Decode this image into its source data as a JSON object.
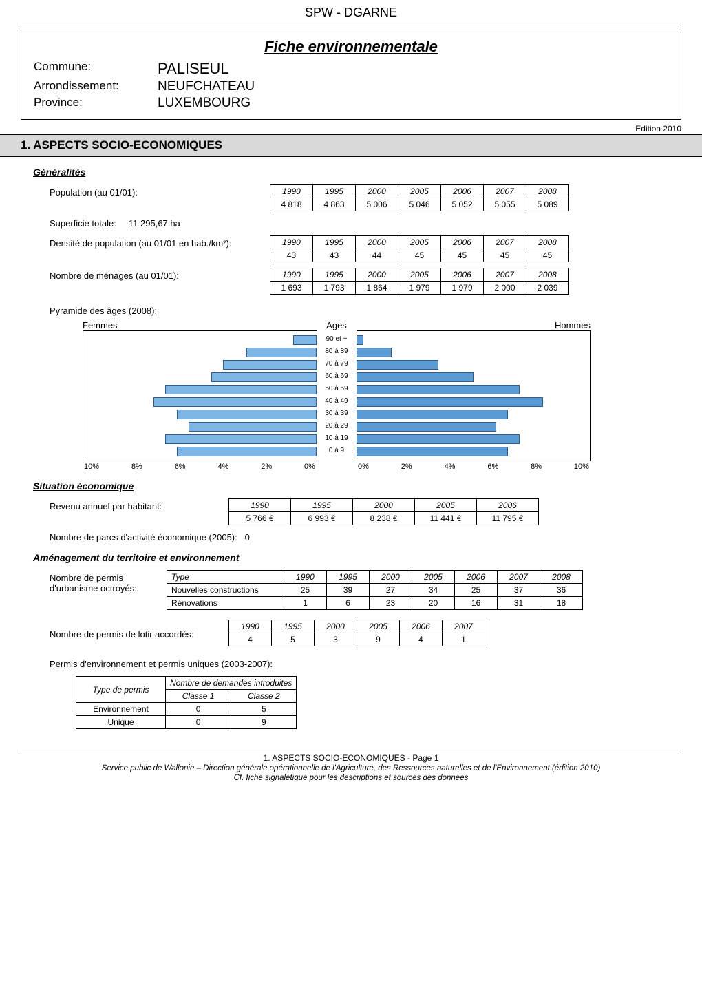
{
  "header": {
    "top_title": "SPW - DGARNE",
    "fiche_title": "Fiche environnementale",
    "commune_label": "Commune:",
    "commune_value": "PALISEUL",
    "arrondissement_label": "Arrondissement:",
    "arrondissement_value": "NEUFCHATEAU",
    "province_label": "Province:",
    "province_value": "LUXEMBOURG",
    "edition": "Edition  2010"
  },
  "section1": {
    "title": "1. ASPECTS SOCIO-ECONOMIQUES"
  },
  "generalites": {
    "heading": "Généralités",
    "population_label": "Population (au 01/01):",
    "population_years": [
      "1990",
      "1995",
      "2000",
      "2005",
      "2006",
      "2007",
      "2008"
    ],
    "population_values": [
      "4 818",
      "4 863",
      "5 006",
      "5 046",
      "5 052",
      "5 055",
      "5 089"
    ],
    "superficie_label": "Superficie totale:",
    "superficie_value": "11 295,67 ha",
    "densite_label": "Densité de population (au 01/01 en hab./km²):",
    "densite_years": [
      "1990",
      "1995",
      "2000",
      "2005",
      "2006",
      "2007",
      "2008"
    ],
    "densite_values": [
      "43",
      "43",
      "44",
      "45",
      "45",
      "45",
      "45"
    ],
    "menages_label": "Nombre de ménages (au 01/01):",
    "menages_years": [
      "1990",
      "1995",
      "2000",
      "2005",
      "2006",
      "2007",
      "2008"
    ],
    "menages_values": [
      "1 693",
      "1 793",
      "1 864",
      "1 979",
      "1 979",
      "2 000",
      "2 039"
    ],
    "pyramide_label": "Pyramide des âges (2008):",
    "pyramide": {
      "left_title": "Femmes",
      "center_title": "Ages",
      "right_title": "Hommes",
      "age_labels": [
        "90 et +",
        "80 à 89",
        "70 à 79",
        "60 à 69",
        "50 à 59",
        "40 à 49",
        "30 à 39",
        "20 à 29",
        "10 à 19",
        "0 à 9"
      ],
      "femmes_pct": [
        1.0,
        3.0,
        4.0,
        4.5,
        6.5,
        7.0,
        6.0,
        5.5,
        6.5,
        6.0
      ],
      "hommes_pct": [
        0.3,
        1.5,
        3.5,
        5.0,
        7.0,
        8.0,
        6.5,
        6.0,
        7.0,
        6.5
      ],
      "axis_left": [
        "10%",
        "8%",
        "6%",
        "4%",
        "2%",
        "0%"
      ],
      "axis_right": [
        "0%",
        "2%",
        "4%",
        "6%",
        "8%",
        "10%"
      ],
      "max_pct": 10,
      "bar_fill_left": "#7eb6e6",
      "bar_fill_right": "#5a9bd4",
      "bar_border": "#2f5b93"
    }
  },
  "situation": {
    "heading": "Situation économique",
    "revenu_label": "Revenu annuel par habitant:",
    "revenu_years": [
      "1990",
      "1995",
      "2000",
      "2005",
      "2006"
    ],
    "revenu_values": [
      "5 766 €",
      "6 993 €",
      "8 238 €",
      "11 441 €",
      "11 795 €"
    ],
    "parcs_label": "Nombre de parcs d'activité économique (2005):",
    "parcs_value": "0"
  },
  "amenagement": {
    "heading": "Aménagement du territoire et environnement",
    "permis_intro1": "Nombre de permis",
    "permis_intro2": "d'urbanisme octroyés:",
    "permis_types_header": [
      "Type",
      "1990",
      "1995",
      "2000",
      "2005",
      "2006",
      "2007",
      "2008"
    ],
    "permis_types_rows": [
      [
        "Nouvelles constructions",
        "25",
        "39",
        "27",
        "34",
        "25",
        "37",
        "36"
      ],
      [
        "Rénovations",
        "1",
        "6",
        "23",
        "20",
        "16",
        "31",
        "18"
      ]
    ],
    "lotir_label": "Nombre de permis de lotir accordés:",
    "lotir_years": [
      "1990",
      "1995",
      "2000",
      "2005",
      "2006",
      "2007"
    ],
    "lotir_values": [
      "4",
      "5",
      "3",
      "9",
      "4",
      "1"
    ],
    "env_permis_label": "Permis d'environnement et permis uniques (2003-2007):",
    "env_permis_header_top": [
      "Type de permis",
      "Nombre de demandes  introduites"
    ],
    "env_permis_header_sub": [
      "Classe 1",
      "Classe 2"
    ],
    "env_permis_rows": [
      [
        "Environnement",
        "0",
        "5"
      ],
      [
        "Unique",
        "0",
        "9"
      ]
    ]
  },
  "footer": {
    "page_line": "1. ASPECTS SOCIO-ECONOMIQUES - Page 1",
    "line2": "Service public de Wallonie – Direction générale opérationnelle de l'Agriculture, des Ressources naturelles et de l'Environnement (édition 2010)",
    "line3": "Cf. fiche signalétique pour les descriptions et sources des données"
  },
  "style": {
    "table_border": "#000000",
    "section_bg": "#d9d9d9"
  }
}
